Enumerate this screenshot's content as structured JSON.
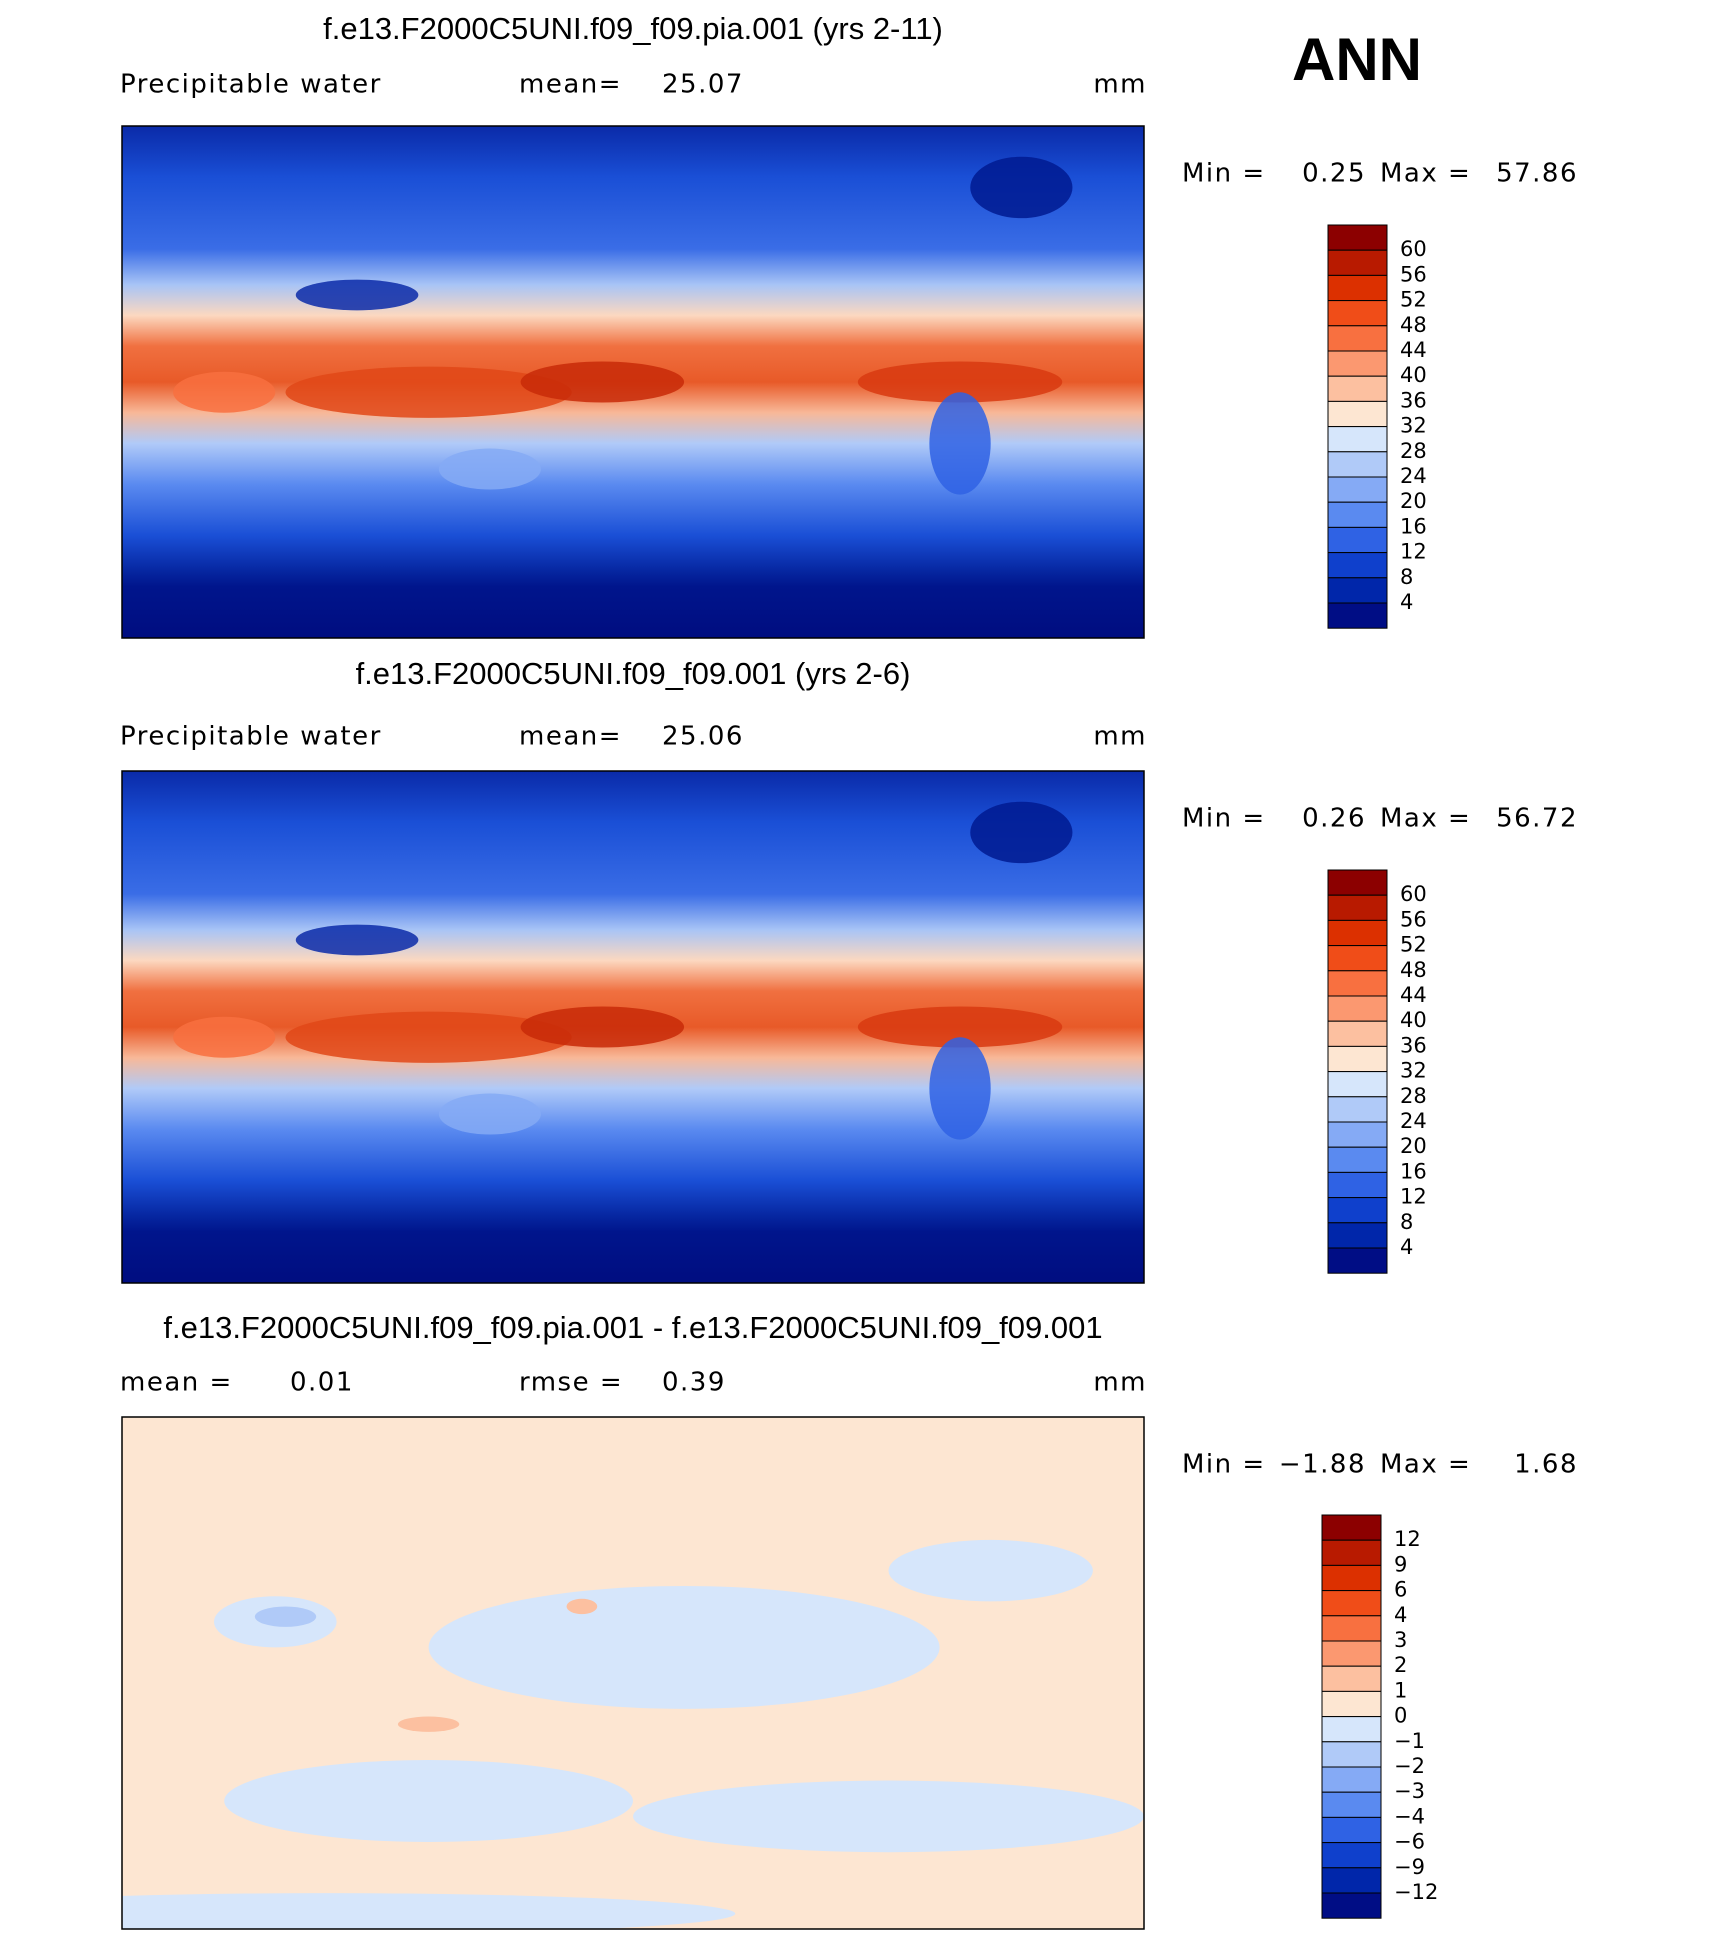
{
  "season": "ANN",
  "panels": [
    {
      "title": "f.e13.F2000C5UNI.f09_f09.pia.001 (yrs 2-11)",
      "left": "Precipitable water",
      "center_label": "mean=",
      "center_value": 25.07,
      "units": "mm",
      "min_label": "Min =",
      "min": 0.25,
      "max_label": "Max =",
      "max": 57.86,
      "colorbar": {
        "labels": [
          60,
          56,
          52,
          48,
          44,
          40,
          36,
          32,
          28,
          24,
          20,
          16,
          12,
          8,
          4
        ],
        "colors": [
          "#8c0000",
          "#b81a00",
          "#dc3000",
          "#f04d18",
          "#f87040",
          "#fb9870",
          "#fcc0a0",
          "#fde6d2",
          "#d6e6fb",
          "#b0caf8",
          "#85aaf5",
          "#5a8af0",
          "#2f62e4",
          "#0f40cc",
          "#0026aa",
          "#000d85"
        ]
      }
    },
    {
      "title": "f.e13.F2000C5UNI.f09_f09.001 (yrs 2-6)",
      "left": "Precipitable water",
      "center_label": "mean=",
      "center_value": 25.06,
      "units": "mm",
      "min_label": "Min =",
      "min": 0.26,
      "max_label": "Max =",
      "max": 56.72,
      "colorbar": {
        "labels": [
          60,
          56,
          52,
          48,
          44,
          40,
          36,
          32,
          28,
          24,
          20,
          16,
          12,
          8,
          4
        ],
        "colors": [
          "#8c0000",
          "#b81a00",
          "#dc3000",
          "#f04d18",
          "#f87040",
          "#fb9870",
          "#fcc0a0",
          "#fde6d2",
          "#d6e6fb",
          "#b0caf8",
          "#85aaf5",
          "#5a8af0",
          "#2f62e4",
          "#0f40cc",
          "#0026aa",
          "#000d85"
        ]
      }
    },
    {
      "title": "f.e13.F2000C5UNI.f09_f09.pia.001 - f.e13.F2000C5UNI.f09_f09.001",
      "left": "mean =",
      "left_value": 0.01,
      "center_label": "rmse =",
      "center_value": 0.39,
      "units": "mm",
      "min_label": "Min =",
      "min": "−1.88",
      "max_label": "Max =",
      "max": 1.68,
      "colorbar": {
        "labels": [
          12,
          9,
          6,
          4,
          3,
          2,
          1,
          0,
          "−1",
          "−2",
          "−3",
          "−4",
          "−6",
          "−9",
          "−12"
        ],
        "colors": [
          "#8c0000",
          "#b81a00",
          "#dc3000",
          "#f04d18",
          "#f87040",
          "#fb9870",
          "#fcc0a0",
          "#fde6d2",
          "#d6e6fb",
          "#b0caf8",
          "#85aaf5",
          "#5a8af0",
          "#2f62e4",
          "#0f40cc",
          "#0026aa",
          "#000d85"
        ]
      }
    }
  ]
}
